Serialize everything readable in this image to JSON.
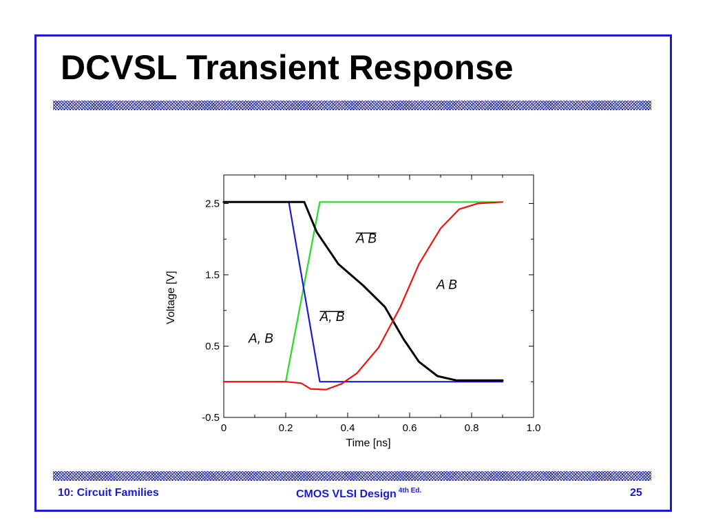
{
  "slide": {
    "title": "DCVSL Transient Response"
  },
  "footer": {
    "left": "10: Circuit Families",
    "center": "CMOS VLSI Design",
    "center_sup": "4th Ed.",
    "page": "25"
  },
  "colors": {
    "frame": "#1a1ad6",
    "footer_text": "#1a1ad6"
  },
  "chart_data": {
    "type": "line",
    "title": "",
    "xlabel": "Time [ns]",
    "ylabel": "Voltage [V]",
    "xlim": [
      0,
      1.0
    ],
    "ylim": [
      -0.5,
      2.9
    ],
    "xticks": [
      "0",
      "0.2",
      "0.4",
      "0.6",
      "0.8",
      "1.0"
    ],
    "xtick_values": [
      0,
      0.2,
      0.4,
      0.6,
      0.8,
      1.0
    ],
    "yticks": [
      "-0.5",
      "0.5",
      "1.5",
      "2.5"
    ],
    "ytick_values": [
      -0.5,
      0.5,
      1.5,
      2.5
    ],
    "grid": false,
    "series": [
      {
        "name": "A, B",
        "color": "#22dd22",
        "x": [
          0,
          0.2,
          0.31,
          0.9
        ],
        "y": [
          0,
          0,
          2.52,
          2.52
        ]
      },
      {
        "name": "A̅, B̅",
        "color": "#1a1ad6",
        "x": [
          0,
          0.21,
          0.31,
          0.9
        ],
        "y": [
          2.52,
          2.52,
          0,
          0
        ]
      },
      {
        "name": "A̅B̅",
        "color": "#000000",
        "x": [
          0,
          0.26,
          0.3,
          0.37,
          0.45,
          0.52,
          0.58,
          0.63,
          0.69,
          0.75,
          0.9
        ],
        "y": [
          2.52,
          2.52,
          2.1,
          1.65,
          1.35,
          1.05,
          0.6,
          0.28,
          0.08,
          0.02,
          0.02
        ],
        "stroke_width": 3
      },
      {
        "name": "A B",
        "color": "#ee1111",
        "x": [
          0,
          0.2,
          0.25,
          0.28,
          0.33,
          0.38,
          0.43,
          0.5,
          0.57,
          0.63,
          0.7,
          0.76,
          0.82,
          0.9
        ],
        "y": [
          0,
          0,
          -0.02,
          -0.1,
          -0.11,
          -0.03,
          0.12,
          0.48,
          1.05,
          1.65,
          2.15,
          2.42,
          2.5,
          2.52
        ]
      }
    ],
    "annotations": [
      {
        "text": "A, B",
        "x": 0.12,
        "y": 0.55
      },
      {
        "text": "A, B",
        "x": 0.35,
        "y": 0.85,
        "overbar": true
      },
      {
        "text": "A B",
        "x": 0.46,
        "y": 1.95,
        "overbar": true
      },
      {
        "text": "A B",
        "x": 0.72,
        "y": 1.3
      }
    ]
  }
}
